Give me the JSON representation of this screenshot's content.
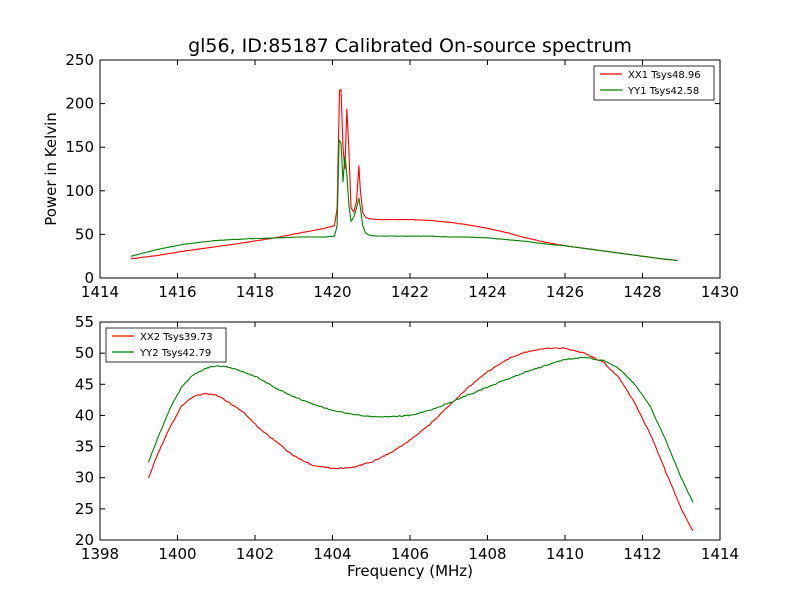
{
  "title": "gl56, ID:85187 Calibrated On-source spectrum",
  "chart_data": [
    {
      "type": "line",
      "ylabel": "Power in Kelvin",
      "xlabel": "",
      "xlim": [
        1414,
        1430
      ],
      "ylim": [
        0,
        250
      ],
      "xticks": [
        "1414",
        "1416",
        "1418",
        "1420",
        "1422",
        "1424",
        "1426",
        "1428",
        "1430"
      ],
      "yticks": [
        "0",
        "50",
        "100",
        "150",
        "200",
        "250"
      ],
      "legend_position": "top-right",
      "grid": false,
      "series": [
        {
          "name": "XX1 Tsys48.96",
          "color": "#ff0000",
          "x": [
            1414.8,
            1415.5,
            1416.2,
            1417.0,
            1417.8,
            1418.5,
            1419.2,
            1419.8,
            1420.05,
            1420.12,
            1420.18,
            1420.22,
            1420.27,
            1420.32,
            1420.37,
            1420.42,
            1420.48,
            1420.55,
            1420.62,
            1420.68,
            1420.72,
            1420.78,
            1420.85,
            1420.95,
            1421.2,
            1421.6,
            1422.0,
            1422.5,
            1423.0,
            1423.5,
            1424.0,
            1424.5,
            1425.0,
            1425.5,
            1426.0,
            1426.5,
            1427.0,
            1427.5,
            1428.0,
            1428.5,
            1428.9
          ],
          "values": [
            22,
            26,
            31,
            36,
            41,
            46,
            52,
            57,
            60,
            80,
            215,
            216,
            150,
            125,
            194,
            150,
            80,
            76,
            88,
            129,
            100,
            75,
            70,
            68,
            67,
            67,
            67,
            66,
            64,
            61,
            57,
            52,
            46,
            41,
            37,
            34,
            31,
            28,
            25,
            22,
            20
          ]
        },
        {
          "name": "YY1 Tsys42.58",
          "color": "#008000",
          "x": [
            1414.8,
            1415.5,
            1416.2,
            1417.0,
            1417.8,
            1418.5,
            1419.2,
            1419.8,
            1420.05,
            1420.12,
            1420.17,
            1420.22,
            1420.27,
            1420.32,
            1420.37,
            1420.42,
            1420.48,
            1420.55,
            1420.62,
            1420.68,
            1420.72,
            1420.78,
            1420.85,
            1420.95,
            1421.2,
            1421.6,
            1422.0,
            1422.5,
            1423.0,
            1423.5,
            1424.0,
            1424.5,
            1425.0,
            1425.5,
            1426.0,
            1426.5,
            1427.0,
            1427.5,
            1428.0,
            1428.5,
            1428.9
          ],
          "values": [
            25,
            33,
            39,
            43,
            45,
            46,
            47,
            47,
            48,
            60,
            158,
            155,
            110,
            140,
            120,
            85,
            65,
            70,
            80,
            92,
            80,
            60,
            52,
            49,
            48,
            48,
            48,
            48,
            47,
            47,
            46,
            44,
            42,
            39,
            37,
            34,
            31,
            28,
            25,
            22,
            20
          ]
        }
      ]
    },
    {
      "type": "line",
      "ylabel": "",
      "xlabel": "Frequency (MHz)",
      "xlim": [
        1398,
        1414
      ],
      "ylim": [
        20,
        55
      ],
      "xticks": [
        "1398",
        "1400",
        "1402",
        "1404",
        "1406",
        "1408",
        "1410",
        "1412",
        "1414"
      ],
      "yticks": [
        "20",
        "25",
        "30",
        "35",
        "40",
        "45",
        "50",
        "55"
      ],
      "legend_position": "top-left",
      "grid": false,
      "series": [
        {
          "name": "XX2 Tsys39.73",
          "color": "#ff0000",
          "x": [
            1399.25,
            1399.5,
            1399.8,
            1400.1,
            1400.4,
            1400.7,
            1401.0,
            1401.3,
            1401.7,
            1402.1,
            1402.5,
            1403.0,
            1403.5,
            1404.0,
            1404.5,
            1405.0,
            1405.5,
            1406.0,
            1406.5,
            1407.0,
            1407.5,
            1408.0,
            1408.5,
            1409.0,
            1409.5,
            1410.0,
            1410.5,
            1411.0,
            1411.4,
            1411.8,
            1412.2,
            1412.6,
            1413.0,
            1413.3
          ],
          "values": [
            30,
            34,
            38,
            41.5,
            43,
            43.5,
            43.3,
            42.2,
            40.5,
            38,
            36,
            33.5,
            32,
            31.5,
            31.6,
            32.5,
            34,
            36,
            38.5,
            41.5,
            44.5,
            47,
            49,
            50.2,
            50.8,
            50.8,
            50,
            48.5,
            46,
            42,
            37,
            31,
            25,
            21.5
          ]
        },
        {
          "name": "YY2 Tsys42.79",
          "color": "#008000",
          "x": [
            1399.25,
            1399.5,
            1399.8,
            1400.1,
            1400.4,
            1400.7,
            1401.0,
            1401.3,
            1401.7,
            1402.1,
            1402.5,
            1403.0,
            1403.5,
            1404.0,
            1404.5,
            1405.0,
            1405.5,
            1406.0,
            1406.5,
            1407.0,
            1407.5,
            1408.0,
            1408.5,
            1409.0,
            1409.5,
            1410.0,
            1410.5,
            1411.0,
            1411.4,
            1411.8,
            1412.2,
            1412.6,
            1413.0,
            1413.3
          ],
          "values": [
            32.5,
            36.5,
            41,
            44.5,
            46.5,
            47.5,
            48,
            47.8,
            47,
            46,
            44.5,
            43,
            41.8,
            40.8,
            40.2,
            39.8,
            39.8,
            40,
            40.8,
            42,
            43.3,
            44.5,
            45.8,
            47,
            48,
            49,
            49.3,
            48.8,
            47.5,
            45,
            41.5,
            36,
            30,
            26
          ]
        }
      ]
    }
  ]
}
